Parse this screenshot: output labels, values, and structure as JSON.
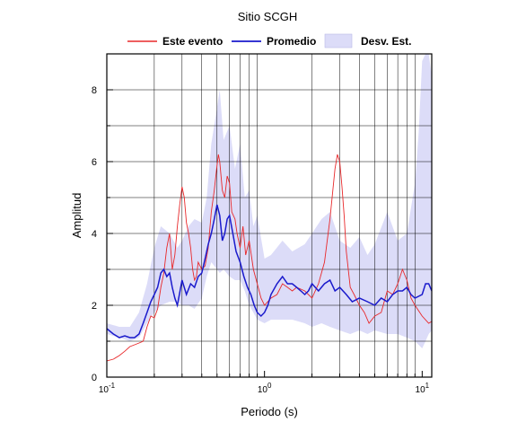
{
  "chart_data": {
    "type": "line",
    "title": "Sitio SCGH",
    "xlabel": "Periodo (s)",
    "ylabel": "Amplitud",
    "x_scale": "log",
    "xlim": [
      0.1,
      11.5
    ],
    "ylim": [
      0,
      9
    ],
    "grid": true,
    "legend_position": "top",
    "x_ticks": [
      {
        "value": 0.1,
        "base": "10",
        "exp": "-1"
      },
      {
        "value": 1,
        "base": "10",
        "exp": "0"
      },
      {
        "value": 10,
        "base": "10",
        "exp": "1"
      }
    ],
    "y_ticks": [
      {
        "value": 0,
        "label": "0"
      },
      {
        "value": 2,
        "label": "2"
      },
      {
        "value": 4,
        "label": "4"
      },
      {
        "value": 6,
        "label": "6"
      },
      {
        "value": 8,
        "label": "8"
      }
    ],
    "legend": [
      {
        "label": "Este evento",
        "kind": "line",
        "color": "#e8282a"
      },
      {
        "label": "Promedio",
        "kind": "line",
        "color": "#1a1acc"
      },
      {
        "label": "Desv. Est.",
        "kind": "band",
        "color": "#dcdcf8"
      }
    ],
    "colors": {
      "event": "#e8282a",
      "mean": "#1a1acc",
      "band": "#dcdcf8",
      "grid": "#000000"
    },
    "band": {
      "name": "Desv. Est.",
      "x": [
        0.1,
        0.12,
        0.14,
        0.16,
        0.18,
        0.2,
        0.22,
        0.25,
        0.28,
        0.3,
        0.33,
        0.36,
        0.4,
        0.43,
        0.46,
        0.5,
        0.52,
        0.55,
        0.6,
        0.65,
        0.7,
        0.75,
        0.8,
        0.85,
        0.9,
        1.0,
        1.1,
        1.3,
        1.5,
        1.8,
        2.0,
        2.3,
        2.6,
        3.0,
        3.5,
        4.0,
        4.5,
        5.0,
        6.0,
        7.0,
        8.0,
        9.0,
        9.5,
        10.0,
        10.5,
        11.0,
        11.5
      ],
      "upper": [
        1.5,
        1.4,
        1.4,
        1.8,
        2.6,
        3.6,
        4.2,
        4.0,
        3.6,
        3.8,
        4.2,
        4.4,
        4.3,
        5.0,
        6.5,
        7.5,
        8.0,
        6.6,
        7.0,
        5.8,
        6.5,
        5.0,
        5.2,
        4.2,
        4.5,
        3.3,
        3.4,
        3.8,
        3.5,
        3.7,
        4.0,
        4.4,
        4.6,
        3.8,
        3.6,
        3.9,
        3.4,
        3.7,
        4.6,
        3.8,
        4.0,
        5.4,
        6.8,
        8.8,
        9.0,
        9.0,
        8.4
      ],
      "lower": [
        1.2,
        1.1,
        1.0,
        1.1,
        1.5,
        1.8,
        2.0,
        2.1,
        2.1,
        2.0,
        2.0,
        1.9,
        2.2,
        2.8,
        3.2,
        3.0,
        2.9,
        3.0,
        2.8,
        2.7,
        2.7,
        2.4,
        2.0,
        1.8,
        1.6,
        1.5,
        1.6,
        1.6,
        1.6,
        1.5,
        1.4,
        1.5,
        1.4,
        1.3,
        1.2,
        1.3,
        1.2,
        1.3,
        1.2,
        1.2,
        1.1,
        1.0,
        0.9,
        0.8,
        1.0,
        1.2,
        1.3
      ]
    },
    "series": [
      {
        "name": "Este evento",
        "x": [
          0.1,
          0.11,
          0.12,
          0.13,
          0.14,
          0.15,
          0.16,
          0.17,
          0.18,
          0.19,
          0.2,
          0.21,
          0.22,
          0.23,
          0.24,
          0.25,
          0.26,
          0.27,
          0.28,
          0.29,
          0.3,
          0.31,
          0.32,
          0.33,
          0.34,
          0.35,
          0.36,
          0.37,
          0.38,
          0.4,
          0.42,
          0.44,
          0.46,
          0.48,
          0.5,
          0.51,
          0.52,
          0.54,
          0.56,
          0.58,
          0.6,
          0.62,
          0.65,
          0.67,
          0.7,
          0.73,
          0.76,
          0.8,
          0.85,
          0.9,
          0.95,
          1.0,
          1.1,
          1.2,
          1.3,
          1.4,
          1.5,
          1.6,
          1.8,
          2.0,
          2.2,
          2.4,
          2.6,
          2.8,
          2.9,
          3.0,
          3.1,
          3.2,
          3.3,
          3.5,
          3.7,
          4.0,
          4.3,
          4.6,
          5.0,
          5.5,
          6.0,
          6.5,
          7.0,
          7.5,
          8.0,
          8.5,
          9.0,
          10.0,
          11.0,
          11.5
        ],
        "y": [
          0.45,
          0.5,
          0.6,
          0.72,
          0.85,
          0.9,
          0.95,
          1.0,
          1.4,
          1.7,
          1.65,
          1.9,
          2.5,
          2.9,
          3.6,
          4.0,
          3.0,
          3.4,
          4.2,
          4.8,
          5.3,
          5.0,
          4.3,
          4.0,
          3.6,
          3.0,
          2.7,
          2.8,
          3.2,
          3.0,
          3.1,
          3.6,
          4.6,
          5.2,
          5.9,
          6.2,
          6.0,
          5.2,
          5.0,
          5.6,
          5.4,
          4.6,
          4.4,
          4.0,
          3.6,
          4.2,
          3.4,
          3.8,
          3.0,
          2.6,
          2.2,
          2.0,
          2.2,
          2.3,
          2.6,
          2.5,
          2.4,
          2.5,
          2.4,
          2.2,
          2.6,
          3.2,
          4.4,
          5.8,
          6.2,
          6.0,
          5.3,
          4.5,
          3.5,
          2.5,
          2.3,
          2.0,
          1.8,
          1.5,
          1.7,
          1.8,
          2.4,
          2.3,
          2.6,
          3.0,
          2.7,
          2.2,
          2.0,
          1.7,
          1.5,
          1.55
        ]
      },
      {
        "name": "Promedio",
        "x": [
          0.1,
          0.11,
          0.12,
          0.13,
          0.14,
          0.15,
          0.16,
          0.17,
          0.18,
          0.19,
          0.2,
          0.21,
          0.22,
          0.23,
          0.24,
          0.25,
          0.26,
          0.27,
          0.28,
          0.3,
          0.32,
          0.34,
          0.36,
          0.38,
          0.4,
          0.42,
          0.44,
          0.46,
          0.48,
          0.5,
          0.52,
          0.54,
          0.56,
          0.58,
          0.6,
          0.63,
          0.66,
          0.7,
          0.74,
          0.78,
          0.82,
          0.86,
          0.9,
          0.95,
          1.0,
          1.05,
          1.1,
          1.2,
          1.3,
          1.4,
          1.5,
          1.6,
          1.7,
          1.8,
          1.9,
          2.0,
          2.2,
          2.4,
          2.6,
          2.8,
          3.0,
          3.3,
          3.6,
          4.0,
          4.5,
          5.0,
          5.5,
          6.0,
          6.5,
          7.0,
          7.5,
          8.0,
          8.5,
          9.0,
          10.0,
          10.5,
          11.0,
          11.5
        ],
        "y": [
          1.35,
          1.2,
          1.1,
          1.15,
          1.1,
          1.1,
          1.2,
          1.5,
          1.8,
          2.1,
          2.3,
          2.5,
          2.9,
          3.0,
          2.8,
          2.9,
          2.5,
          2.2,
          2.0,
          2.7,
          2.3,
          2.6,
          2.5,
          2.8,
          2.9,
          3.3,
          3.7,
          4.0,
          4.4,
          4.8,
          4.5,
          3.8,
          4.0,
          4.4,
          4.5,
          4.0,
          3.5,
          3.2,
          2.8,
          2.5,
          2.3,
          2.0,
          1.8,
          1.7,
          1.8,
          2.0,
          2.3,
          2.6,
          2.8,
          2.6,
          2.6,
          2.5,
          2.4,
          2.3,
          2.4,
          2.6,
          2.4,
          2.6,
          2.7,
          2.4,
          2.5,
          2.3,
          2.1,
          2.2,
          2.1,
          2.0,
          2.2,
          2.1,
          2.3,
          2.4,
          2.4,
          2.5,
          2.3,
          2.2,
          2.3,
          2.6,
          2.6,
          2.4
        ]
      }
    ]
  }
}
